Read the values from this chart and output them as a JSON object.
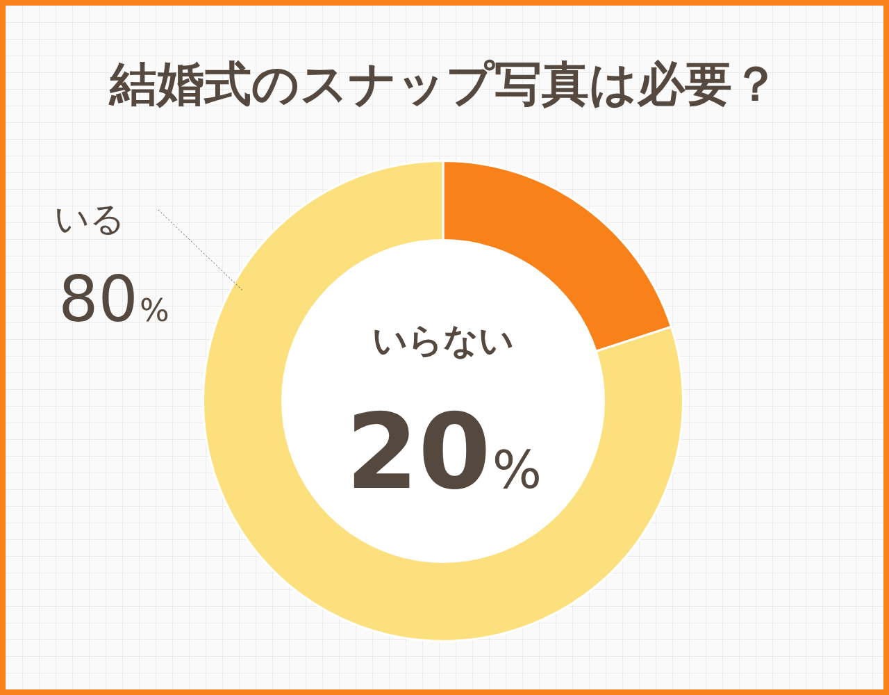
{
  "chart_data": {
    "type": "donut",
    "title": "結婚式のスナップ写真は必要？",
    "categories": [
      "いらない",
      "いる"
    ],
    "values": [
      20,
      80
    ],
    "colors": [
      "#f8811a",
      "#fde07e"
    ],
    "value_labels": [
      "20%",
      "80%"
    ]
  }
}
